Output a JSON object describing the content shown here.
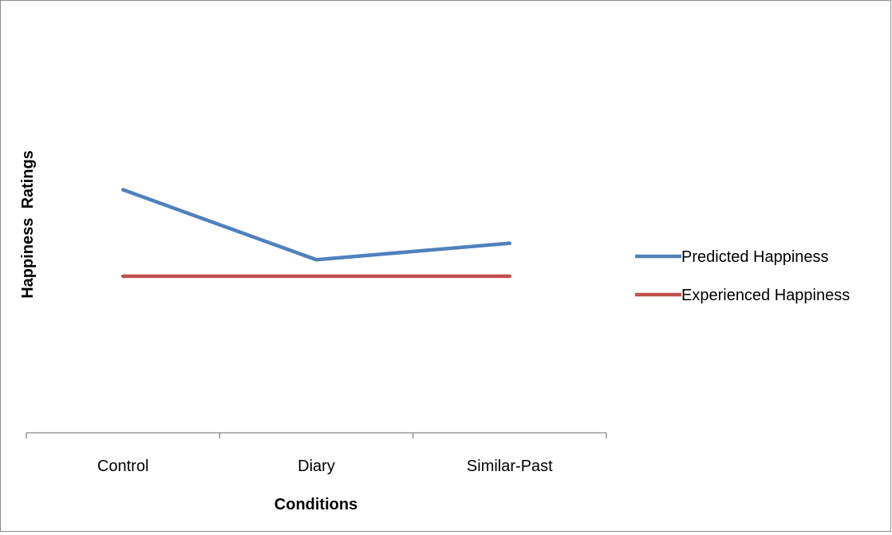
{
  "chart_data": {
    "type": "line",
    "title": "",
    "xlabel": "Conditions",
    "ylabel": "Happiness  Ratings",
    "categories": [
      "Control",
      "Diary",
      "Similar-Past"
    ],
    "series": [
      {
        "name": "Predicted Happiness",
        "values": [
          5.9,
          4.2,
          4.6
        ]
      },
      {
        "name": "Experienced Happiness",
        "values": [
          3.8,
          3.8,
          3.8
        ]
      }
    ],
    "ylim": [
      0,
      10
    ],
    "grid": false,
    "legend_position": "right",
    "colors": {
      "series": [
        "#4f81bd",
        "#c0504d"
      ],
      "axis": "#868686",
      "frame": "#8c8c8c"
    }
  }
}
